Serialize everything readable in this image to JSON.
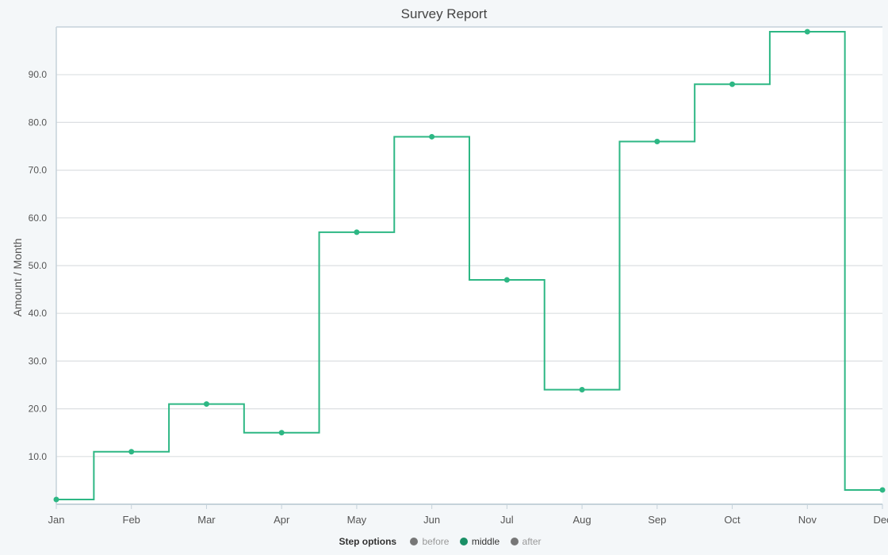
{
  "chart_data": {
    "type": "line",
    "step": "middle",
    "title": "Survey Report",
    "ylabel": "Amount / Month",
    "xlabel": "",
    "categories": [
      "Jan",
      "Feb",
      "Mar",
      "Apr",
      "May",
      "Jun",
      "Jul",
      "Aug",
      "Sep",
      "Oct",
      "Nov",
      "Dec"
    ],
    "series": [
      {
        "values": [
          1,
          11,
          21,
          15,
          57,
          77,
          47,
          24,
          76,
          88,
          99,
          3
        ],
        "color": "#2db784"
      }
    ],
    "ylim": [
      0,
      100
    ],
    "yticks": [
      "10.0",
      "20.0",
      "30.0",
      "40.0",
      "50.0",
      "60.0",
      "70.0",
      "80.0",
      "90.0"
    ],
    "grid": true,
    "legend_placement": "bottom-center"
  },
  "legend": {
    "title": "Step options",
    "items": [
      {
        "label": "before",
        "color": "#777777",
        "active": false
      },
      {
        "label": "middle",
        "color": "#1a8f66",
        "active": true
      },
      {
        "label": "after",
        "color": "#777777",
        "active": false
      }
    ]
  }
}
